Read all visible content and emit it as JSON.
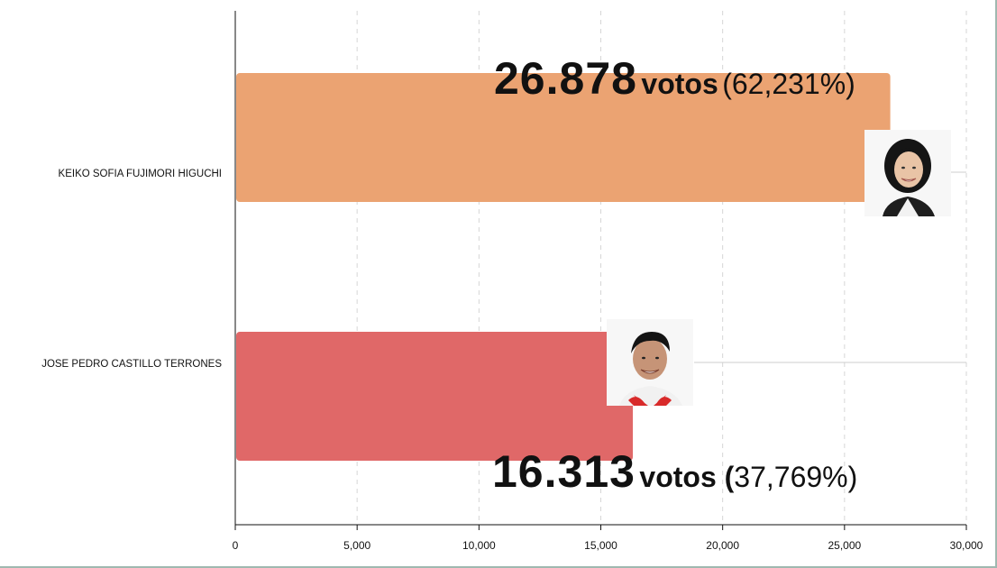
{
  "chart_data": {
    "type": "bar",
    "orientation": "horizontal",
    "categories": [
      "KEIKO SOFIA FUJIMORI HIGUCHI",
      "JOSE PEDRO CASTILLO TERRONES"
    ],
    "values": [
      26878,
      16313
    ],
    "colors": [
      "#eba372",
      "#e06868"
    ],
    "xlim": [
      0,
      30000
    ],
    "xticks": [
      "0",
      "5,000",
      "10,000",
      "15,000",
      "20,000",
      "25,000",
      "30,000"
    ],
    "grid": "vertical dashed",
    "annotations": [
      {
        "number": "26.878",
        "word": "votos",
        "pct": "(62,231%)"
      },
      {
        "number": "16.313",
        "word": "votos (",
        "pct": "37,769%)"
      }
    ],
    "title": "",
    "xlabel": "",
    "ylabel": ""
  },
  "icons": [
    "candidate-photo-fujimori",
    "candidate-photo-castillo"
  ]
}
